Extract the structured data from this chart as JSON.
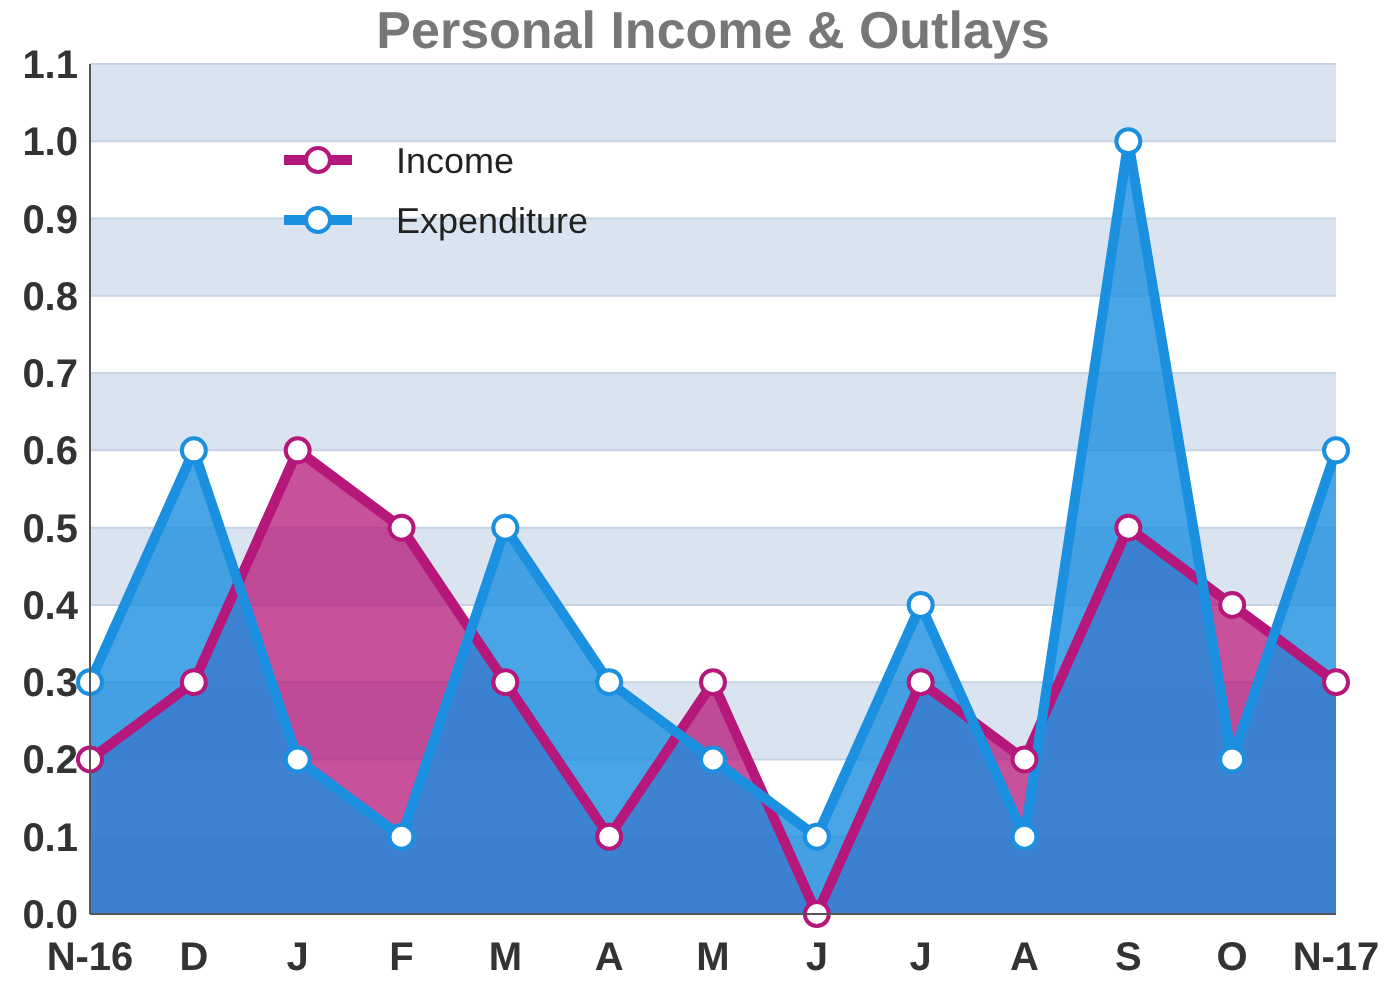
{
  "chart_data": {
    "type": "area",
    "title": "Personal Income & Outlays",
    "categories": [
      "N-16",
      "D",
      "J",
      "F",
      "M",
      "A",
      "M",
      "J",
      "J",
      "A",
      "S",
      "O",
      "N-17"
    ],
    "series": [
      {
        "name": "Income",
        "color": "#b5177a",
        "values": [
          0.2,
          0.3,
          0.6,
          0.5,
          0.3,
          0.1,
          0.3,
          0.0,
          0.3,
          0.2,
          0.5,
          0.4,
          0.3
        ]
      },
      {
        "name": "Expenditure",
        "color": "#1b8fe0",
        "values": [
          0.3,
          0.6,
          0.2,
          0.1,
          0.5,
          0.3,
          0.2,
          0.1,
          0.4,
          0.1,
          1.0,
          0.2,
          0.6
        ]
      }
    ],
    "ylim": [
      0,
      1.1
    ],
    "yticks": [
      {
        "value": 0,
        "label": "0.0"
      },
      0.1,
      0.2,
      0.3,
      0.4,
      0.5,
      0.6,
      0.7,
      0.8,
      0.9,
      {
        "value": 1,
        "label": "1.0"
      },
      1.1
    ],
    "grid": "y",
    "legend": "top left",
    "marker": "circle",
    "line_style": "solid"
  }
}
